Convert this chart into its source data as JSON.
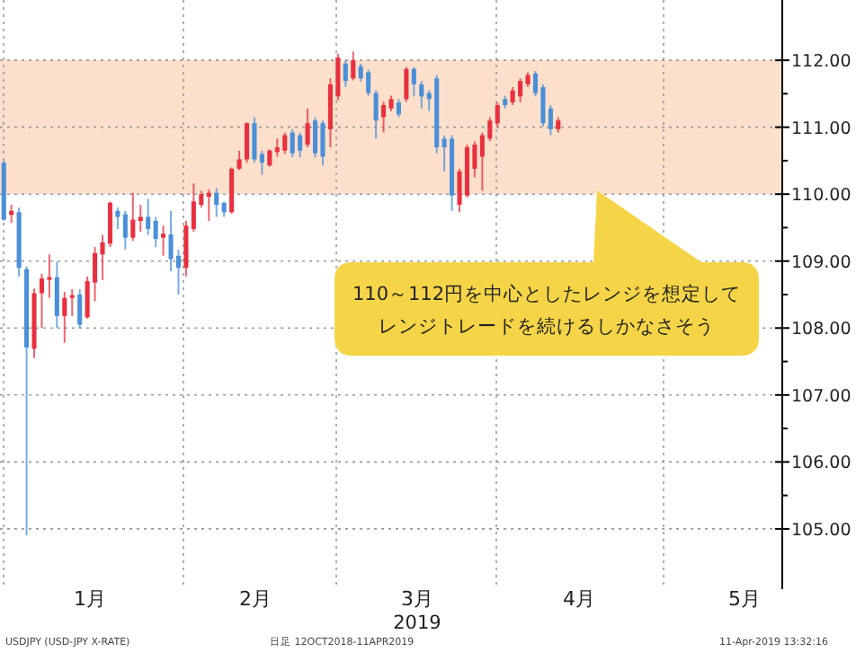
{
  "chart_data": {
    "type": "candlestick",
    "categories": [
      null,
      null,
      null,
      null,
      null,
      null,
      null,
      null,
      null,
      null,
      null,
      null,
      null,
      null,
      null,
      null,
      null,
      null,
      null,
      null,
      null,
      null,
      null,
      null,
      null,
      null,
      null,
      null,
      null,
      null,
      null,
      null,
      null,
      null,
      null,
      null,
      null,
      null,
      null,
      null,
      null,
      null,
      null,
      null,
      null,
      null,
      null,
      null,
      null,
      null,
      null,
      null,
      null,
      null,
      null,
      null,
      null,
      null,
      null,
      null,
      null,
      null,
      null,
      null,
      null,
      null,
      null,
      null,
      null,
      null,
      null,
      null,
      null,
      null,
      null,
      null,
      null,
      null,
      null,
      null,
      null,
      null,
      null,
      null,
      null,
      null,
      null,
      null,
      null,
      null,
      null,
      null,
      null,
      null,
      null,
      null,
      null,
      null,
      null,
      null,
      null,
      null,
      null
    ],
    "ohlc": [
      [
        110.47,
        110.5,
        109.6,
        109.62
      ],
      [
        109.69,
        109.84,
        109.57,
        109.75
      ],
      [
        109.73,
        109.8,
        108.77,
        108.9
      ],
      [
        108.88,
        108.92,
        104.9,
        107.71
      ],
      [
        107.69,
        108.59,
        107.55,
        108.52
      ],
      [
        108.52,
        108.81,
        108.0,
        108.74
      ],
      [
        108.72,
        109.1,
        108.45,
        108.76
      ],
      [
        108.76,
        108.99,
        108.0,
        108.18
      ],
      [
        108.18,
        108.54,
        107.78,
        108.45
      ],
      [
        108.45,
        108.58,
        108.18,
        108.49
      ],
      [
        108.5,
        108.58,
        108.0,
        108.05
      ],
      [
        108.16,
        108.77,
        108.14,
        108.7
      ],
      [
        108.68,
        109.21,
        108.4,
        109.12
      ],
      [
        109.1,
        109.39,
        108.72,
        109.28
      ],
      [
        109.26,
        109.89,
        109.21,
        109.87
      ],
      [
        109.75,
        109.8,
        109.48,
        109.66
      ],
      [
        109.7,
        109.75,
        109.17,
        109.35
      ],
      [
        109.35,
        110.02,
        109.3,
        109.62
      ],
      [
        109.6,
        109.84,
        109.44,
        109.66
      ],
      [
        109.66,
        109.93,
        109.39,
        109.48
      ],
      [
        109.6,
        109.66,
        109.21,
        109.33
      ],
      [
        109.35,
        109.53,
        109.08,
        109.41
      ],
      [
        109.4,
        109.75,
        108.85,
        109.03
      ],
      [
        109.08,
        109.17,
        108.5,
        108.9
      ],
      [
        108.9,
        109.6,
        108.77,
        109.53
      ],
      [
        109.48,
        110.16,
        109.44,
        109.89
      ],
      [
        109.84,
        110.05,
        109.8,
        110.0
      ],
      [
        109.96,
        110.07,
        109.6,
        110.02
      ],
      [
        110.02,
        110.09,
        109.66,
        109.84
      ],
      [
        109.87,
        109.89,
        109.66,
        109.73
      ],
      [
        109.73,
        110.4,
        109.71,
        110.38
      ],
      [
        110.38,
        110.65,
        110.36,
        110.52
      ],
      [
        110.52,
        111.07,
        110.47,
        111.06
      ],
      [
        111.06,
        111.15,
        110.47,
        110.52
      ],
      [
        110.6,
        110.65,
        110.29,
        110.47
      ],
      [
        110.43,
        110.67,
        110.41,
        110.65
      ],
      [
        110.63,
        110.83,
        110.56,
        110.7
      ],
      [
        110.65,
        110.92,
        110.6,
        110.88
      ],
      [
        110.92,
        110.97,
        110.55,
        110.61
      ],
      [
        110.88,
        110.92,
        110.55,
        110.65
      ],
      [
        110.74,
        111.28,
        110.7,
        111.06
      ],
      [
        111.1,
        111.15,
        110.55,
        110.61
      ],
      [
        111.06,
        111.1,
        110.43,
        110.56
      ],
      [
        110.97,
        111.73,
        110.7,
        111.64
      ],
      [
        111.46,
        112.1,
        111.4,
        112.04
      ],
      [
        111.95,
        112.0,
        111.6,
        111.69
      ],
      [
        111.73,
        112.13,
        111.7,
        112.0
      ],
      [
        111.91,
        111.95,
        111.68,
        111.73
      ],
      [
        111.82,
        111.86,
        111.47,
        111.51
      ],
      [
        111.51,
        111.55,
        110.83,
        111.1
      ],
      [
        111.15,
        111.38,
        110.92,
        111.33
      ],
      [
        111.28,
        111.47,
        111.24,
        111.42
      ],
      [
        111.37,
        111.42,
        111.15,
        111.19
      ],
      [
        111.42,
        111.9,
        111.38,
        111.87
      ],
      [
        111.87,
        111.9,
        111.46,
        111.64
      ],
      [
        111.64,
        111.69,
        111.28,
        111.46
      ],
      [
        111.51,
        111.55,
        111.24,
        111.42
      ],
      [
        111.73,
        111.78,
        110.61,
        110.7
      ],
      [
        110.83,
        110.88,
        110.34,
        110.7
      ],
      [
        110.83,
        110.88,
        109.75,
        109.98
      ],
      [
        109.84,
        110.38,
        109.73,
        110.34
      ],
      [
        109.98,
        110.74,
        109.95,
        110.7
      ],
      [
        110.38,
        110.79,
        110.25,
        110.74
      ],
      [
        110.56,
        110.92,
        110.05,
        110.88
      ],
      [
        110.83,
        111.15,
        110.79,
        111.1
      ],
      [
        111.06,
        111.37,
        111.0,
        111.33
      ],
      [
        111.42,
        111.47,
        111.28,
        111.33
      ],
      [
        111.37,
        111.6,
        111.33,
        111.55
      ],
      [
        111.46,
        111.73,
        111.37,
        111.69
      ],
      [
        111.64,
        111.82,
        111.6,
        111.78
      ],
      [
        111.8,
        111.84,
        111.46,
        111.51
      ],
      [
        111.6,
        111.64,
        111.01,
        111.06
      ],
      [
        111.28,
        111.33,
        110.88,
        110.97
      ],
      [
        110.97,
        111.15,
        110.92,
        111.1
      ],
      null,
      null,
      null,
      null,
      null,
      null,
      null,
      null,
      null,
      null,
      null,
      null,
      null,
      null,
      null,
      null,
      null,
      null,
      null,
      null,
      null,
      null,
      null,
      null,
      null,
      null,
      null,
      null,
      null
    ],
    "colors": [
      "#4a8fd8",
      "#e8303f",
      "#4a8fd8",
      "#4a8fd8",
      "#e8303f",
      "#e8303f",
      "#e8303f",
      "#4a8fd8",
      "#e8303f",
      "#e8303f",
      "#4a8fd8",
      "#e8303f",
      "#e8303f",
      "#e8303f",
      "#e8303f",
      "#4a8fd8",
      "#4a8fd8",
      "#e8303f",
      "#e8303f",
      "#4a8fd8",
      "#4a8fd8",
      "#e8303f",
      "#4a8fd8",
      "#4a8fd8",
      "#e8303f",
      "#e8303f",
      "#e8303f",
      "#e8303f",
      "#4a8fd8",
      "#4a8fd8",
      "#e8303f",
      "#e8303f",
      "#e8303f",
      "#4a8fd8",
      "#4a8fd8",
      "#e8303f",
      "#e8303f",
      "#e8303f",
      "#4a8fd8",
      "#4a8fd8",
      "#e8303f",
      "#4a8fd8",
      "#4a8fd8",
      "#e8303f",
      "#e8303f",
      "#4a8fd8",
      "#e8303f",
      "#4a8fd8",
      "#4a8fd8",
      "#4a8fd8",
      "#e8303f",
      "#e8303f",
      "#4a8fd8",
      "#e8303f",
      "#4a8fd8",
      "#4a8fd8",
      "#4a8fd8",
      "#4a8fd8",
      "#4a8fd8",
      "#4a8fd8",
      "#e8303f",
      "#e8303f",
      "#e8303f",
      "#e8303f",
      "#e8303f",
      "#e8303f",
      "#4a8fd8",
      "#e8303f",
      "#e8303f",
      "#e8303f",
      "#4a8fd8",
      "#4a8fd8",
      "#4a8fd8",
      "#e8303f",
      null,
      null,
      null,
      null,
      null,
      null,
      null,
      null,
      null,
      null,
      null,
      null,
      null,
      null,
      null,
      null,
      null,
      null,
      null,
      null,
      null,
      null,
      null,
      null,
      null,
      null,
      null,
      null,
      null
    ],
    "xlabel": "2019",
    "ylim": [
      104.1,
      112.9
    ],
    "yticks": [
      {
        "value": 105,
        "label": "105.00"
      },
      {
        "value": 106,
        "label": "106.00"
      },
      {
        "value": 107,
        "label": "107.00"
      },
      {
        "value": 108,
        "label": "108.00"
      },
      {
        "value": 109,
        "label": "109.00"
      },
      {
        "value": 110,
        "label": "110.00"
      },
      {
        "value": 111,
        "label": "111.00"
      },
      {
        "value": 112,
        "label": "112.00"
      }
    ],
    "grid": true,
    "bands": [
      {
        "axis": "y",
        "from": 110,
        "to": 112,
        "label": null,
        "color": "#fde0cc"
      }
    ],
    "annotations": [
      "110～112円を中心としたレンジを想定して",
      "レンジトレードを続けるしかなさそう",
      "1月",
      "2月",
      "3月",
      "4月",
      "5月",
      "USDJPY (USD-JPY X-RATE)",
      "日足 12OCT2018-11APR2019",
      "11-Apr-2019 13:32:16"
    ]
  }
}
